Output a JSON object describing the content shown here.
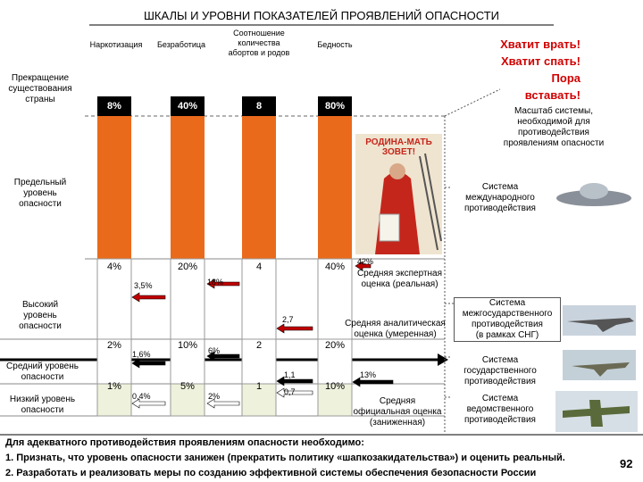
{
  "title": "ШКАЛЫ И УРОВНИ ПОКАЗАТЕЛЕЙ ПРОЯВЛЕНИЙ ОПАСНОСТИ",
  "columns": [
    {
      "header": "Наркотизация",
      "top": "8%",
      "limit": "4%",
      "high": "2%",
      "medium": "1%"
    },
    {
      "header": "Безработица",
      "top": "40%",
      "limit": "20%",
      "high": "10%",
      "medium": "5%"
    },
    {
      "header": "Соотношение\nколичества\nабортов и родов",
      "top": "8",
      "limit": "4",
      "high": "2",
      "medium": "1"
    },
    {
      "header": "Бедность",
      "top": "80%",
      "limit": "40%",
      "high": "20%",
      "medium": "10%"
    }
  ],
  "levels": [
    "Прекращение\nсуществования\nстраны",
    "Предельный\nуровень\nопасности",
    "Высокий\nуровень\nопасности",
    "Средний уровень\nопасности",
    "Низкий уровень\nопасности"
  ],
  "slogan": "Хватит врать!\nХватит спать!\nПора вставать!",
  "markers": [
    {
      "label": "3,5%",
      "color": "#c00000"
    },
    {
      "label": "18%",
      "color": "#c00000"
    },
    {
      "label": "2,7",
      "color": "#c00000"
    },
    {
      "label": "42%",
      "color": "#c00000"
    },
    {
      "label": "1,6%",
      "color": "#000000"
    },
    {
      "label": "6%",
      "color": "#000000"
    },
    {
      "label": "1,1",
      "color": "#000000"
    },
    {
      "label": "13%",
      "color": "#000000"
    },
    {
      "label": "0,4%",
      "color": "#ffffff"
    },
    {
      "label": "2%",
      "color": "#ffffff"
    },
    {
      "label": "0,7",
      "color": "#ffffff"
    }
  ],
  "estimates": [
    "Средняя экспертная\nоценка (реальная)",
    "Средняя аналитическая\nоценка (умеренная)",
    "Средняя\nофициальная оценка\n(заниженная)"
  ],
  "poster": "РОДИНА-МАТЬ\nЗОВЕТ!",
  "systems": {
    "heading": "Масштаб системы,\nнеобходимой для\nпротиводействия\nпроявлениям опасности",
    "items": [
      "Система\nмеждународного\nпротиводействия",
      "Система\nмежгосударственного\nпротиводействия\n(в рамках СНГ)",
      "Система\nгосударственного\nпротиводействия",
      "Система\nведомственного\nпротиводействия"
    ]
  },
  "footer": {
    "intro": "Для адекватного противодействия проявлениям опасности необходимо:",
    "items": [
      "1. Признать, что уровень опасности занижен (прекратить политику «шапкозакидательства») и оценить реальный.",
      "2. Разработать и реализовать меры по созданию эффективной системы обеспечения безопасности России"
    ]
  },
  "page_number": "92"
}
